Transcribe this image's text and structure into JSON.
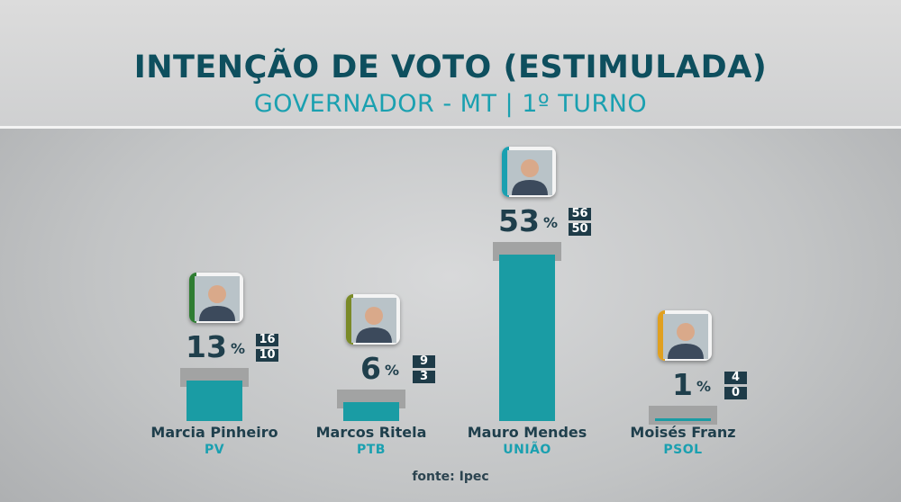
{
  "header": {
    "title": "INTENÇÃO DE VOTO (ESTIMULADA)",
    "subtitle": "GOVERNADOR - MT | 1º TURNO"
  },
  "source": "fonte: Ipec",
  "colors": {
    "title": "#0e4f5e",
    "subtitle": "#1aa0b0",
    "bar": "#1a9ca4",
    "margin_cap": "#a2a3a3",
    "range_badge": "#1e3b48"
  },
  "chart_data": {
    "type": "bar",
    "categories": [
      "Marcia Pinheiro",
      "Marcos Ritela",
      "Mauro Mendes",
      "Moisés Franz"
    ],
    "parties": [
      "PV",
      "PTB",
      "UNIÃO",
      "PSOL"
    ],
    "values": [
      13,
      6,
      53,
      1
    ],
    "upper": [
      16,
      9,
      56,
      4
    ],
    "lower": [
      10,
      3,
      50,
      0
    ],
    "unit": "%",
    "photo_edge_colors": [
      "#2e7d32",
      "#7a8a28",
      "#1aa0b0",
      "#e0a020"
    ]
  }
}
